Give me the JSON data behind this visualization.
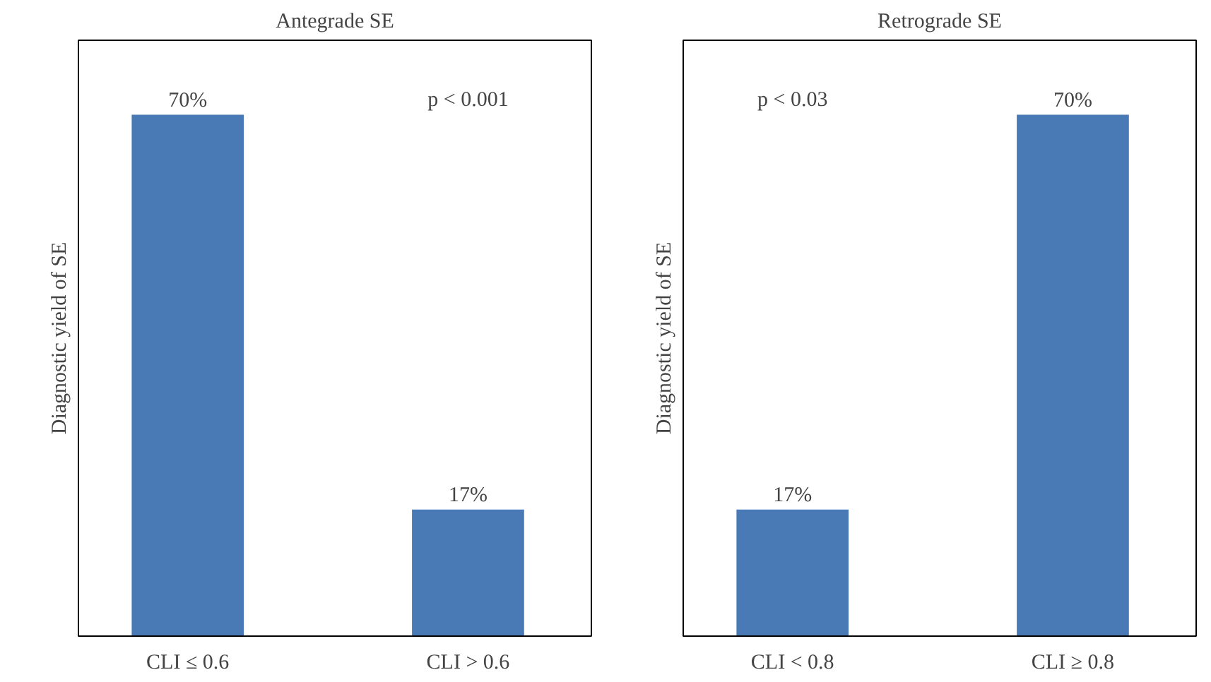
{
  "chart_data": [
    {
      "type": "bar",
      "title": "Antegrade SE",
      "ylabel": "Diagnostic yield of SE",
      "categories": [
        "CLI ≤ 0.6",
        "CLI > 0.6"
      ],
      "values": [
        70,
        17
      ],
      "value_labels": [
        "70%",
        "17%"
      ],
      "color": "#4a7ab5",
      "ylim": [
        0,
        80
      ],
      "tick_labels": "x",
      "grid": false,
      "annotations": [
        "p < 0.001"
      ]
    },
    {
      "type": "bar",
      "title": "Retrograde SE",
      "ylabel": "Diagnostic yield of SE",
      "categories": [
        "CLI < 0.8",
        "CLI ≥ 0.8"
      ],
      "values": [
        17,
        70
      ],
      "value_labels": [
        "17%",
        "70%"
      ],
      "color": "#4a7ab5",
      "ylim": [
        0,
        80
      ],
      "tick_labels": "x",
      "grid": false,
      "annotations": [
        "p < 0.03"
      ]
    }
  ]
}
